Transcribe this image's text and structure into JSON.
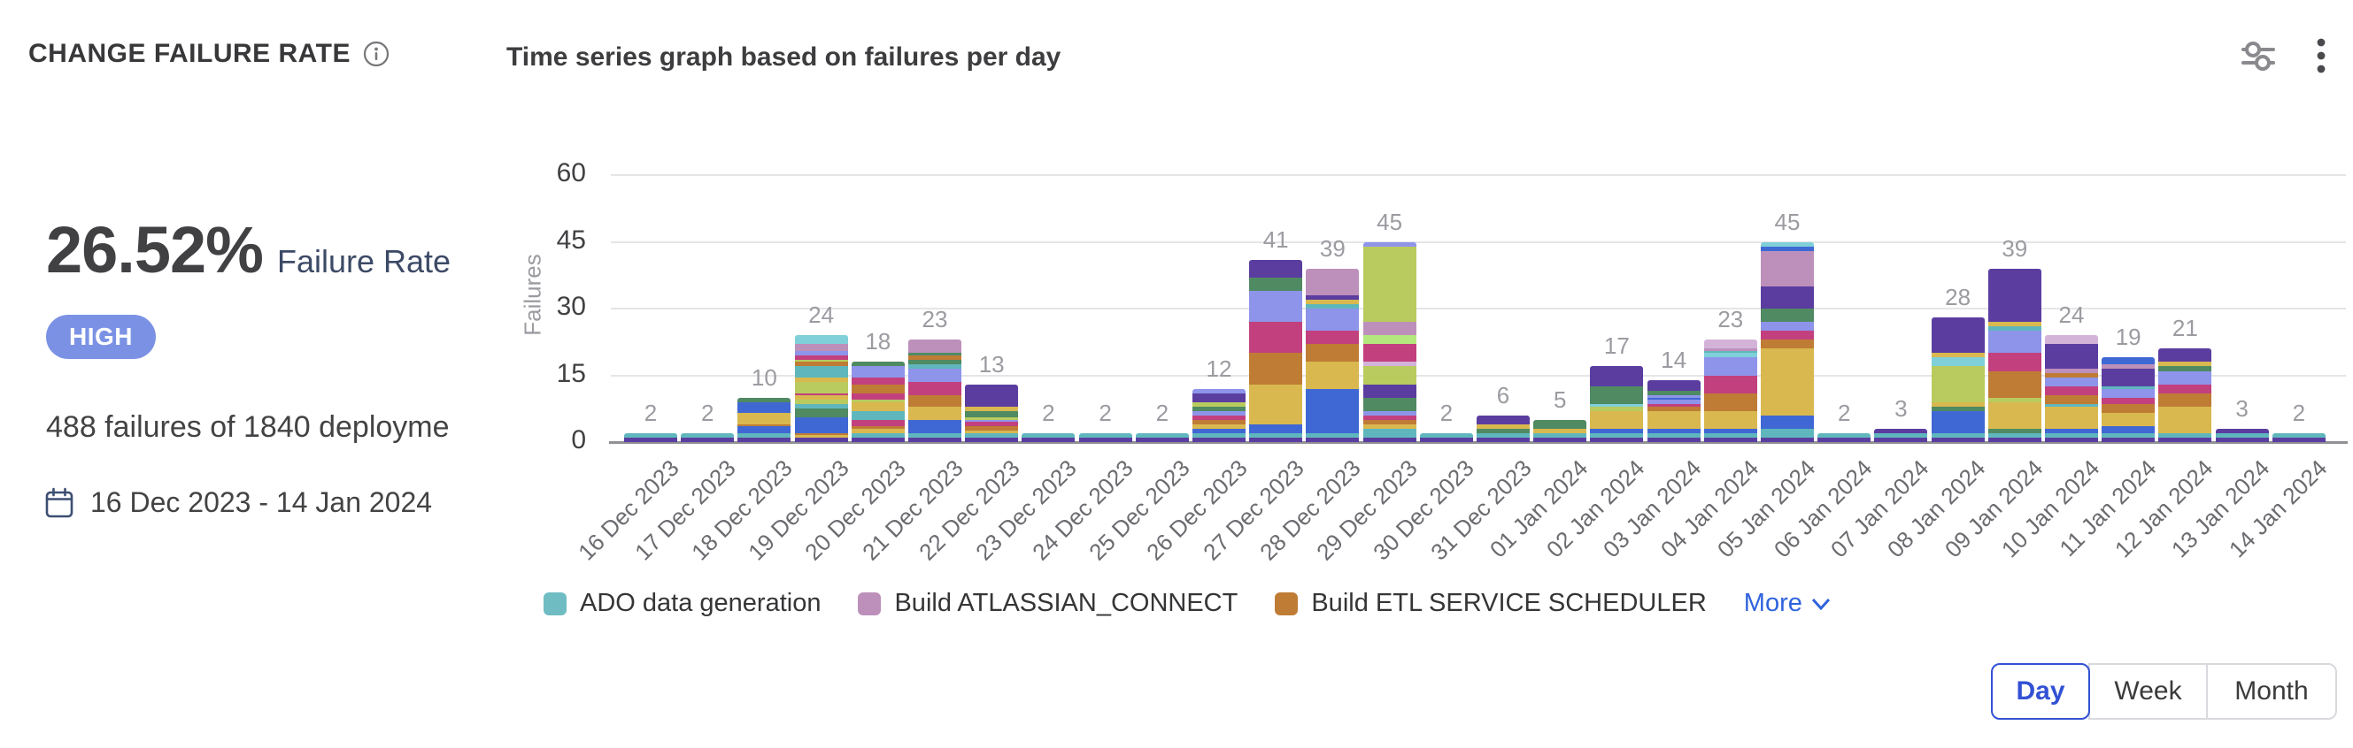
{
  "header": {
    "title": "CHANGE FAILURE RATE"
  },
  "summary": {
    "rate": "26.52%",
    "rate_label": "Failure Rate",
    "severity": "HIGH",
    "severity_color": "#7b92e4",
    "failures_text": "488 failures of 1840 deployme",
    "date_range": "16 Dec 2023 - 14 Jan 2024"
  },
  "legend": {
    "items": [
      {
        "label": "ADO data generation",
        "color": "#6fbdc3"
      },
      {
        "label": "Build ATLASSIAN_CONNECT",
        "color": "#bd90bb"
      },
      {
        "label": "Build ETL SERVICE SCHEDULER",
        "color": "#bf7c35"
      }
    ],
    "more_label": "More"
  },
  "granularity": {
    "options": [
      "Day",
      "Week",
      "Month"
    ],
    "selected": "Day"
  },
  "chart_data": {
    "type": "bar",
    "stacked": true,
    "title": "Time series graph based on failures per day",
    "ylabel": "Failures",
    "y_ticks": [
      0,
      15,
      30,
      45,
      60
    ],
    "ylim": [
      0,
      60
    ],
    "grid": true,
    "legend_position": "bottom",
    "palette": [
      "#5b3da0",
      "#5fb7bd",
      "#3f68d4",
      "#d9b84f",
      "#bf7c35",
      "#c2407e",
      "#4f8a62",
      "#b9cb5e",
      "#8e94ea",
      "#bd90bb",
      "#7fd0d8",
      "#b4e87f",
      "#d4b3d9"
    ],
    "bars": [
      {
        "date": "16 Dec 2023",
        "total": 2,
        "segments": [
          [
            0,
            1
          ],
          [
            1,
            1
          ]
        ]
      },
      {
        "date": "17 Dec 2023",
        "total": 2,
        "segments": [
          [
            0,
            1
          ],
          [
            1,
            1
          ]
        ]
      },
      {
        "date": "18 Dec 2023",
        "total": 10,
        "segments": [
          [
            0,
            1
          ],
          [
            1,
            1
          ],
          [
            2,
            1.5
          ],
          [
            4,
            0.5
          ],
          [
            3,
            2.5
          ],
          [
            2,
            2.5
          ],
          [
            6,
            1
          ]
        ]
      },
      {
        "date": "19 Dec 2023",
        "total": 24,
        "segments": [
          [
            0,
            1
          ],
          [
            3,
            0.5
          ],
          [
            4,
            0.5
          ],
          [
            2,
            3.5
          ],
          [
            6,
            2
          ],
          [
            1,
            1
          ],
          [
            7,
            1
          ],
          [
            3,
            1
          ],
          [
            5,
            0.5
          ],
          [
            7,
            2.5
          ],
          [
            3,
            1
          ],
          [
            1,
            2.5
          ],
          [
            4,
            1
          ],
          [
            7,
            0.5
          ],
          [
            5,
            1
          ],
          [
            8,
            1
          ],
          [
            9,
            1.5
          ],
          [
            10,
            2
          ]
        ]
      },
      {
        "date": "20 Dec 2023",
        "total": 18,
        "segments": [
          [
            0,
            1
          ],
          [
            1,
            1
          ],
          [
            3,
            1
          ],
          [
            4,
            0.5
          ],
          [
            5,
            1.5
          ],
          [
            1,
            2
          ],
          [
            3,
            2
          ],
          [
            7,
            0.5
          ],
          [
            5,
            1.5
          ],
          [
            4,
            2
          ],
          [
            5,
            1.5
          ],
          [
            8,
            2.5
          ],
          [
            6,
            1
          ]
        ]
      },
      {
        "date": "21 Dec 2023",
        "total": 23,
        "segments": [
          [
            0,
            1
          ],
          [
            1,
            1
          ],
          [
            2,
            3
          ],
          [
            3,
            3
          ],
          [
            4,
            2.5
          ],
          [
            5,
            3
          ],
          [
            8,
            3
          ],
          [
            1,
            1
          ],
          [
            6,
            1
          ],
          [
            4,
            1
          ],
          [
            6,
            0.5
          ],
          [
            9,
            3
          ]
        ]
      },
      {
        "date": "22 Dec 2023",
        "total": 13,
        "segments": [
          [
            0,
            1
          ],
          [
            1,
            1
          ],
          [
            3,
            0.5
          ],
          [
            4,
            1
          ],
          [
            5,
            1
          ],
          [
            8,
            0.5
          ],
          [
            7,
            0.5
          ],
          [
            6,
            1.5
          ],
          [
            3,
            1
          ],
          [
            0,
            5
          ]
        ]
      },
      {
        "date": "23 Dec 2023",
        "total": 2,
        "segments": [
          [
            0,
            1
          ],
          [
            1,
            1
          ]
        ]
      },
      {
        "date": "24 Dec 2023",
        "total": 2,
        "segments": [
          [
            0,
            1
          ],
          [
            1,
            1
          ]
        ]
      },
      {
        "date": "25 Dec 2023",
        "total": 2,
        "segments": [
          [
            0,
            1
          ],
          [
            1,
            1
          ]
        ]
      },
      {
        "date": "26 Dec 2023",
        "total": 12,
        "segments": [
          [
            0,
            1
          ],
          [
            1,
            1
          ],
          [
            2,
            1
          ],
          [
            3,
            1
          ],
          [
            4,
            1
          ],
          [
            5,
            1
          ],
          [
            8,
            1
          ],
          [
            6,
            1
          ],
          [
            7,
            1
          ],
          [
            0,
            2
          ],
          [
            8,
            1
          ]
        ]
      },
      {
        "date": "27 Dec 2023",
        "total": 41,
        "segments": [
          [
            0,
            1
          ],
          [
            1,
            1
          ],
          [
            2,
            2
          ],
          [
            3,
            9
          ],
          [
            4,
            7
          ],
          [
            5,
            7
          ],
          [
            8,
            7
          ],
          [
            6,
            3
          ],
          [
            0,
            4
          ]
        ]
      },
      {
        "date": "28 Dec 2023",
        "total": 39,
        "segments": [
          [
            0,
            1
          ],
          [
            1,
            1
          ],
          [
            2,
            10
          ],
          [
            3,
            6
          ],
          [
            4,
            4
          ],
          [
            5,
            3
          ],
          [
            8,
            5
          ],
          [
            1,
            1
          ],
          [
            3,
            1
          ],
          [
            0,
            1
          ],
          [
            9,
            6
          ]
        ]
      },
      {
        "date": "29 Dec 2023",
        "total": 45,
        "segments": [
          [
            0,
            1
          ],
          [
            1,
            2
          ],
          [
            3,
            1
          ],
          [
            4,
            1
          ],
          [
            5,
            1
          ],
          [
            8,
            1
          ],
          [
            6,
            3
          ],
          [
            0,
            3
          ],
          [
            7,
            4
          ],
          [
            12,
            1
          ],
          [
            5,
            4
          ],
          [
            11,
            2
          ],
          [
            9,
            3
          ],
          [
            7,
            17
          ],
          [
            8,
            1
          ]
        ]
      },
      {
        "date": "30 Dec 2023",
        "total": 2,
        "segments": [
          [
            0,
            1
          ],
          [
            1,
            1
          ]
        ]
      },
      {
        "date": "31 Dec 2023",
        "total": 6,
        "segments": [
          [
            0,
            1
          ],
          [
            1,
            1
          ],
          [
            6,
            1
          ],
          [
            3,
            1
          ],
          [
            0,
            2
          ]
        ]
      },
      {
        "date": "01 Jan 2024",
        "total": 5,
        "segments": [
          [
            0,
            1
          ],
          [
            1,
            1
          ],
          [
            3,
            1
          ],
          [
            6,
            2
          ]
        ]
      },
      {
        "date": "02 Jan 2024",
        "total": 17,
        "segments": [
          [
            0,
            1
          ],
          [
            1,
            1
          ],
          [
            2,
            1
          ],
          [
            3,
            4
          ],
          [
            7,
            1
          ],
          [
            10,
            0.5
          ],
          [
            6,
            4
          ],
          [
            0,
            4.5
          ]
        ]
      },
      {
        "date": "03 Jan 2024",
        "total": 14,
        "segments": [
          [
            0,
            1
          ],
          [
            1,
            1
          ],
          [
            2,
            1
          ],
          [
            3,
            4
          ],
          [
            4,
            1
          ],
          [
            5,
            0.5
          ],
          [
            8,
            1
          ],
          [
            2,
            0.5
          ],
          [
            8,
            0.5
          ],
          [
            6,
            1
          ],
          [
            0,
            2.5
          ]
        ]
      },
      {
        "date": "04 Jan 2024",
        "total": 23,
        "segments": [
          [
            0,
            1
          ],
          [
            1,
            1
          ],
          [
            2,
            1
          ],
          [
            3,
            4
          ],
          [
            4,
            4
          ],
          [
            5,
            4
          ],
          [
            8,
            4
          ],
          [
            10,
            1
          ],
          [
            1,
            0.5
          ],
          [
            9,
            0.5
          ],
          [
            12,
            2
          ]
        ]
      },
      {
        "date": "05 Jan 2024",
        "total": 45,
        "segments": [
          [
            0,
            1
          ],
          [
            1,
            2
          ],
          [
            2,
            3
          ],
          [
            3,
            15
          ],
          [
            4,
            2
          ],
          [
            5,
            2
          ],
          [
            8,
            2
          ],
          [
            6,
            3
          ],
          [
            0,
            5
          ],
          [
            9,
            8
          ],
          [
            2,
            1
          ],
          [
            10,
            1
          ]
        ]
      },
      {
        "date": "06 Jan 2024",
        "total": 2,
        "segments": [
          [
            0,
            1
          ],
          [
            1,
            1
          ]
        ]
      },
      {
        "date": "07 Jan 2024",
        "total": 3,
        "segments": [
          [
            0,
            1
          ],
          [
            1,
            1
          ],
          [
            0,
            1
          ]
        ]
      },
      {
        "date": "08 Jan 2024",
        "total": 28,
        "segments": [
          [
            0,
            1
          ],
          [
            1,
            1
          ],
          [
            2,
            5
          ],
          [
            6,
            1
          ],
          [
            3,
            1
          ],
          [
            7,
            8
          ],
          [
            10,
            2
          ],
          [
            3,
            1
          ],
          [
            0,
            8
          ]
        ]
      },
      {
        "date": "09 Jan 2024",
        "total": 39,
        "segments": [
          [
            0,
            1
          ],
          [
            1,
            1
          ],
          [
            6,
            1
          ],
          [
            3,
            6
          ],
          [
            7,
            1
          ],
          [
            4,
            6
          ],
          [
            5,
            4
          ],
          [
            8,
            5
          ],
          [
            1,
            1
          ],
          [
            3,
            1
          ],
          [
            0,
            12
          ]
        ]
      },
      {
        "date": "10 Jan 2024",
        "total": 24,
        "segments": [
          [
            0,
            1
          ],
          [
            1,
            1
          ],
          [
            2,
            1
          ],
          [
            3,
            5
          ],
          [
            1,
            0.5
          ],
          [
            4,
            2
          ],
          [
            5,
            2
          ],
          [
            8,
            2
          ],
          [
            4,
            1
          ],
          [
            9,
            1
          ],
          [
            0,
            5.5
          ],
          [
            12,
            2
          ]
        ]
      },
      {
        "date": "11 Jan 2024",
        "total": 19,
        "segments": [
          [
            0,
            1
          ],
          [
            1,
            1
          ],
          [
            2,
            1.5
          ],
          [
            3,
            3
          ],
          [
            4,
            2
          ],
          [
            5,
            1.5
          ],
          [
            8,
            2
          ],
          [
            1,
            0.5
          ],
          [
            0,
            4
          ],
          [
            9,
            1
          ],
          [
            2,
            1.5
          ]
        ]
      },
      {
        "date": "12 Jan 2024",
        "total": 21,
        "segments": [
          [
            0,
            1
          ],
          [
            1,
            1
          ],
          [
            3,
            6
          ],
          [
            4,
            3
          ],
          [
            5,
            2
          ],
          [
            8,
            3
          ],
          [
            6,
            1
          ],
          [
            3,
            1
          ],
          [
            0,
            3
          ]
        ]
      },
      {
        "date": "13 Jan 2024",
        "total": 3,
        "segments": [
          [
            0,
            1
          ],
          [
            1,
            1
          ],
          [
            0,
            1
          ]
        ]
      },
      {
        "date": "14 Jan 2024",
        "total": 2,
        "segments": [
          [
            0,
            1
          ],
          [
            1,
            1
          ]
        ]
      }
    ]
  }
}
